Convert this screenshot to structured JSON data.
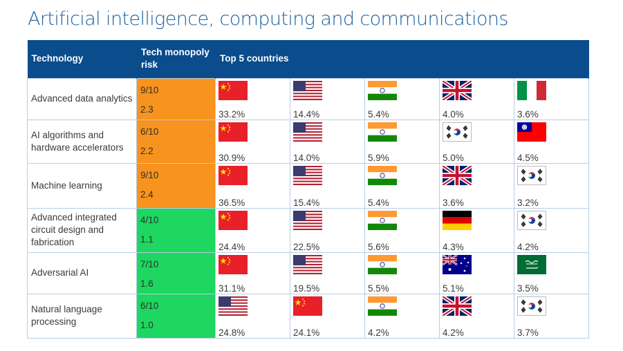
{
  "title": "Artificial intelligence, computing and communications",
  "header": {
    "technology": "Technology",
    "risk": "Tech monopoly risk",
    "countries": "Top 5 countries"
  },
  "colors": {
    "header_bg": "#0a4c8c",
    "high_risk": "#f7931e",
    "low_risk": "#1ed760"
  },
  "rows": [
    {
      "technology": "Advanced data analytics",
      "risk_score": "9/10",
      "risk_value": "2.3",
      "risk_level": "high",
      "countries": [
        {
          "flag": "china",
          "share": "33.2%"
        },
        {
          "flag": "usa",
          "share": "14.4%"
        },
        {
          "flag": "india",
          "share": "5.4%"
        },
        {
          "flag": "uk",
          "share": "4.0%"
        },
        {
          "flag": "italy",
          "share": "3.6%"
        }
      ]
    },
    {
      "technology": "AI algorithms and hardware accelerators",
      "risk_score": "6/10",
      "risk_value": "2.2",
      "risk_level": "high",
      "countries": [
        {
          "flag": "china",
          "share": "30.9%"
        },
        {
          "flag": "usa",
          "share": "14.0%"
        },
        {
          "flag": "india",
          "share": "5.9%"
        },
        {
          "flag": "south-korea",
          "share": "5.0%"
        },
        {
          "flag": "taiwan",
          "share": "4.5%"
        }
      ]
    },
    {
      "technology": "Machine learning",
      "risk_score": "9/10",
      "risk_value": "2.4",
      "risk_level": "high",
      "countries": [
        {
          "flag": "china",
          "share": "36.5%"
        },
        {
          "flag": "usa",
          "share": "15.4%"
        },
        {
          "flag": "india",
          "share": "5.4%"
        },
        {
          "flag": "uk",
          "share": "3.6%"
        },
        {
          "flag": "south-korea",
          "share": "3.2%"
        }
      ]
    },
    {
      "technology": "Advanced integrated circuit design and fabrication",
      "risk_score": "4/10",
      "risk_value": "1.1",
      "risk_level": "low",
      "countries": [
        {
          "flag": "china",
          "share": "24.4%"
        },
        {
          "flag": "usa",
          "share": "22.5%"
        },
        {
          "flag": "india",
          "share": "5.6%"
        },
        {
          "flag": "germany",
          "share": "4.3%"
        },
        {
          "flag": "south-korea",
          "share": "4.2%"
        }
      ]
    },
    {
      "technology": "Adversarial AI",
      "risk_score": "7/10",
      "risk_value": "1.6",
      "risk_level": "low",
      "countries": [
        {
          "flag": "china",
          "share": "31.1%"
        },
        {
          "flag": "usa",
          "share": "19.5%"
        },
        {
          "flag": "india",
          "share": "5.5%"
        },
        {
          "flag": "australia",
          "share": "5.1%"
        },
        {
          "flag": "saudi-arabia",
          "share": "3.5%"
        }
      ]
    },
    {
      "technology": "Natural language processing",
      "risk_score": "6/10",
      "risk_value": "1.0",
      "risk_level": "low",
      "countries": [
        {
          "flag": "usa",
          "share": "24.8%"
        },
        {
          "flag": "china",
          "share": "24.1%"
        },
        {
          "flag": "india",
          "share": "4.2%"
        },
        {
          "flag": "uk",
          "share": "4.2%"
        },
        {
          "flag": "south-korea",
          "share": "3.7%"
        }
      ]
    }
  ]
}
